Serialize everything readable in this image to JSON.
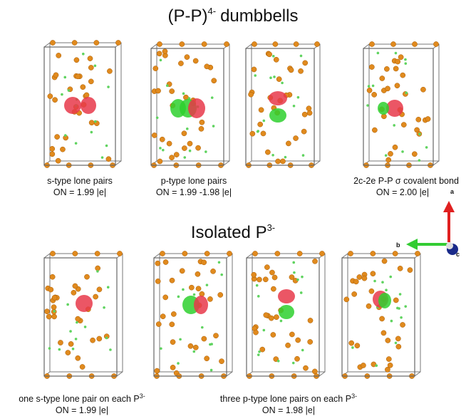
{
  "title_top": {
    "text": "(P-P)",
    "sup": "4-",
    "after": "dumbbells"
  },
  "top_panels": [
    {
      "caption": "s-type lone pairs",
      "on": "ON = 1.99 |e|"
    },
    {
      "caption": "p-type lone pairs",
      "on": "ON = 1.99 -1.98 |e|"
    },
    {
      "caption": "2c-2e P-P σ covalent bond",
      "on": "ON = 2.00 |e|"
    }
  ],
  "title_bottom": {
    "text": "Isolated P",
    "sup": "3-"
  },
  "bottom_panels": [
    {
      "caption": "one s-type lone pair on each P",
      "sup": "3-",
      "on": "ON = 1.99 |e|"
    },
    {
      "caption": "three p-type lone pairs on each P",
      "sup": "3-",
      "on": "ON = 1.98 |e|"
    }
  ],
  "axes": {
    "a": "a",
    "b": "b",
    "c": "c"
  }
}
